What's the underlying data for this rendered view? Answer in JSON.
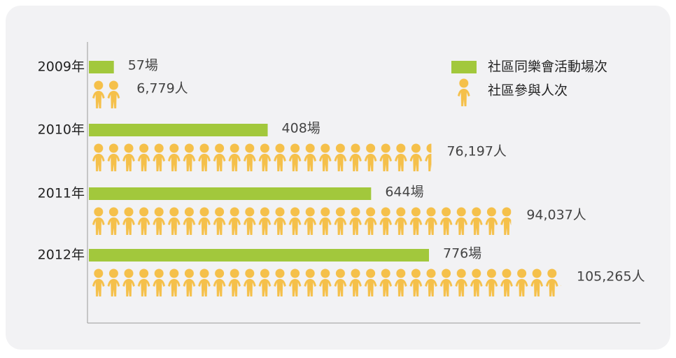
{
  "chart_data": {
    "type": "bar-pictogram",
    "categories": [
      "2009年",
      "2010年",
      "2011年",
      "2012年"
    ],
    "series": [
      {
        "name": "社區同樂會活動場次",
        "color": "#a2c83c",
        "values": [
          57,
          408,
          644,
          776
        ],
        "value_labels": [
          "57場",
          "408場",
          "644場",
          "776場"
        ]
      },
      {
        "name": "社區參與人次",
        "color": "#f5c04a",
        "values": [
          6779,
          76197,
          94037,
          105265
        ],
        "value_labels": [
          "6,779人",
          "76,197人",
          "94,037人",
          "105,265人"
        ]
      }
    ]
  }
}
